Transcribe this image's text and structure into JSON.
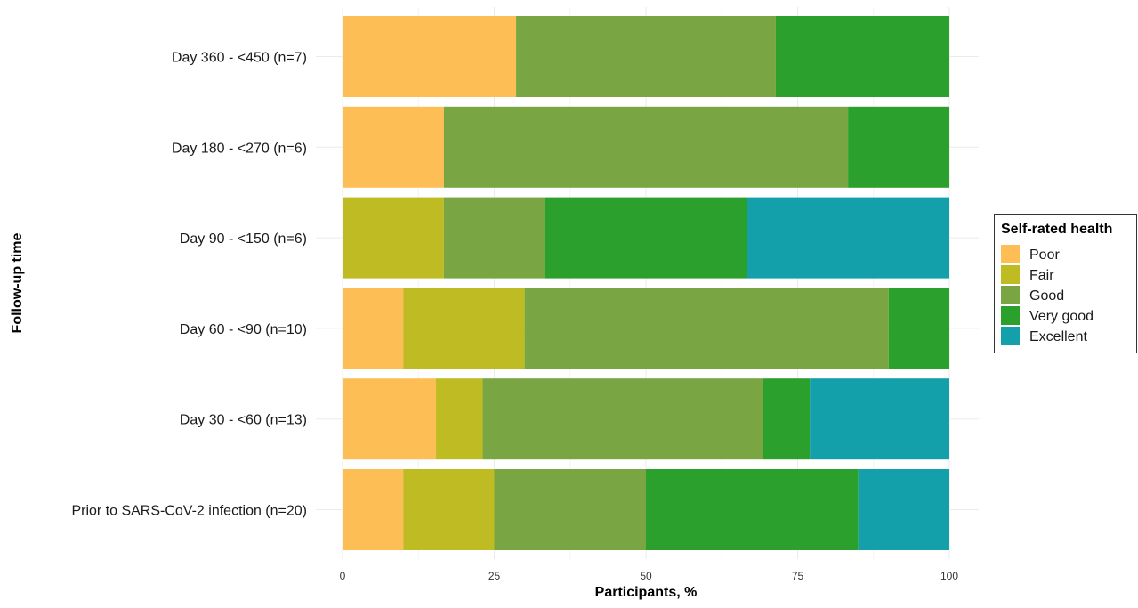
{
  "chart_data": {
    "type": "bar",
    "orientation": "horizontal",
    "stacked": true,
    "xlabel": "Participants, %",
    "ylabel": "Follow-up time",
    "xlim": [
      0,
      100
    ],
    "xticks": [
      "0",
      "25",
      "50",
      "75",
      "100"
    ],
    "categories": [
      "Day 360 - <450 (n=7)",
      "Day 180 - <270 (n=6)",
      "Day 90 - <150 (n=6)",
      "Day 60 - <90 (n=10)",
      "Day 30 - <60 (n=13)",
      "Prior to SARS-CoV-2 infection (n=20)"
    ],
    "legend": {
      "title": "Self-rated health",
      "position": "right"
    },
    "series": [
      {
        "name": "Poor",
        "color": "#fdbf55",
        "values": [
          28.6,
          16.7,
          0,
          10,
          15.4,
          10
        ]
      },
      {
        "name": "Fair",
        "color": "#bfbc23",
        "values": [
          0,
          0,
          16.7,
          20,
          7.7,
          15
        ]
      },
      {
        "name": "Good",
        "color": "#79a642",
        "values": [
          42.8,
          66.6,
          16.7,
          60,
          46.2,
          25
        ]
      },
      {
        "name": "Very good",
        "color": "#2ca02c",
        "values": [
          28.6,
          16.7,
          33.3,
          10,
          7.7,
          35
        ]
      },
      {
        "name": "Excellent",
        "color": "#13a0aa",
        "values": [
          0,
          0,
          33.3,
          0,
          23.0,
          15
        ]
      }
    ],
    "grid": true
  }
}
